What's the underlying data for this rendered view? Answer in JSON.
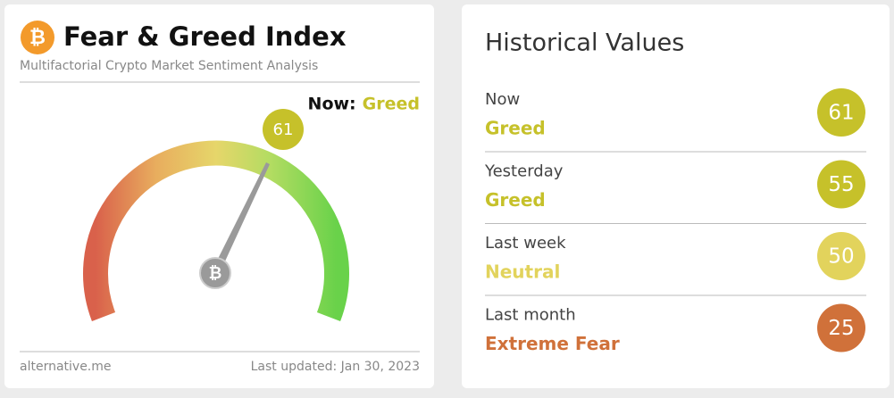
{
  "left_card": {
    "title": "Fear & Greed Index",
    "subtitle": "Multifactorial Crypto Market Sentiment Analysis",
    "now_label": "Now:",
    "now_classification": "Greed",
    "now_color": "#c6c12a",
    "value": 61,
    "source": "alternative.me",
    "last_updated": "Last updated: Jan 30, 2023"
  },
  "right_card": {
    "title": "Historical Values",
    "rows": [
      {
        "period": "Now",
        "classification": "Greed",
        "value": 61,
        "color": "#c6c12a"
      },
      {
        "period": "Yesterday",
        "classification": "Greed",
        "value": 55,
        "color": "#c6c12a"
      },
      {
        "period": "Last week",
        "classification": "Neutral",
        "value": 50,
        "color": "#e2d35c"
      },
      {
        "period": "Last month",
        "classification": "Extreme Fear",
        "value": 25,
        "color": "#d0713a"
      }
    ]
  }
}
